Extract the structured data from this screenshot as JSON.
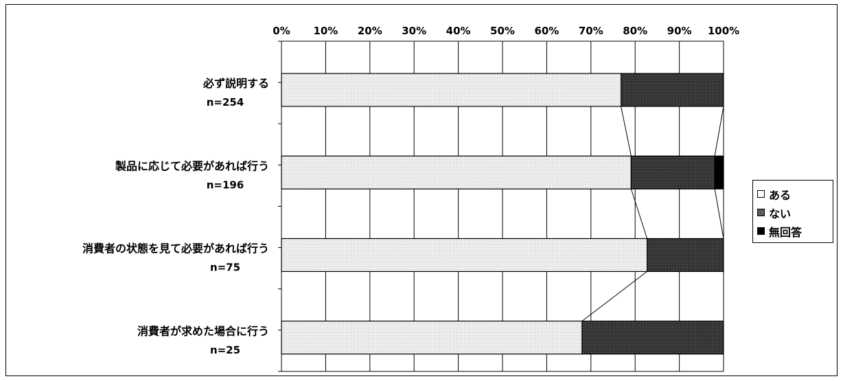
{
  "chart_data": {
    "type": "bar",
    "orientation": "horizontal",
    "stacked": true,
    "percent_stacked": true,
    "series_lines": true,
    "grid": true,
    "legend_position": "right",
    "xlim": [
      0,
      100
    ],
    "ticks": [
      "0%",
      "10%",
      "20%",
      "30%",
      "40%",
      "50%",
      "60%",
      "70%",
      "80%",
      "90%",
      "100%"
    ],
    "categories": [
      "必ず説明する",
      "製品に応じて必要があれば行う",
      "消費者の状態を見て必要があれば行う",
      "消費者が求めた場合に行う"
    ],
    "sample_sizes": [
      "n=254",
      "n=196",
      "n=75",
      "n=25"
    ],
    "series": [
      {
        "name": "ある",
        "values": [
          76.8,
          79.1,
          82.7,
          68.0
        ],
        "color": "#eeeeee"
      },
      {
        "name": "ない",
        "values": [
          23.2,
          18.9,
          17.3,
          32.0
        ],
        "color": "#3a3a3a"
      },
      {
        "name": "無回答",
        "values": [
          0.0,
          2.0,
          0.0,
          0.0
        ],
        "color": "#000000"
      }
    ]
  }
}
